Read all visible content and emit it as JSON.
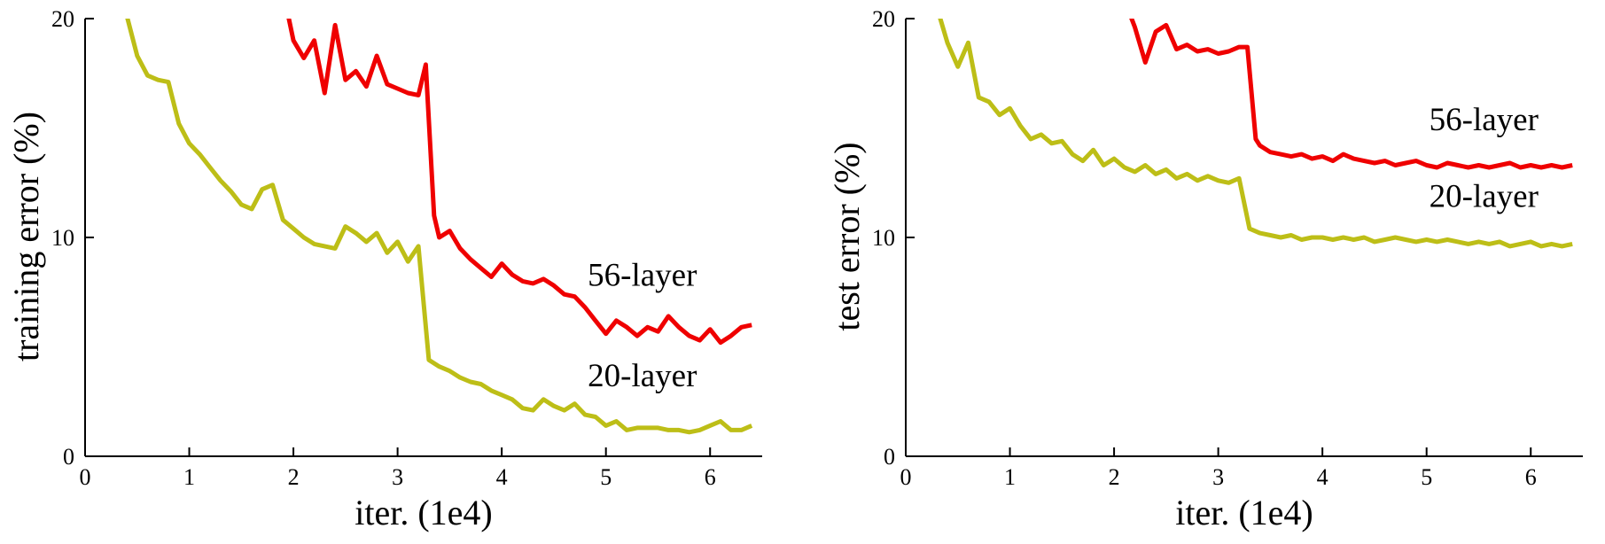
{
  "figure": {
    "background": "#ffffff",
    "axis_color": "#000000"
  },
  "chart_data": [
    {
      "type": "line",
      "title": "",
      "xlabel": "iter. (1e4)",
      "ylabel": "training error (%)",
      "xlim": [
        0,
        6.5
      ],
      "ylim": [
        0,
        20
      ],
      "xticks": [
        0,
        1,
        2,
        3,
        4,
        5,
        6
      ],
      "yticks": [
        0,
        10,
        20
      ],
      "grid": false,
      "legend_position": "inline-annotations",
      "series": [
        {
          "name": "20-layer",
          "color": "#bdbe17",
          "x": [
            0.38,
            0.5,
            0.6,
            0.7,
            0.8,
            0.9,
            1.0,
            1.1,
            1.2,
            1.3,
            1.4,
            1.5,
            1.6,
            1.7,
            1.8,
            1.9,
            2.0,
            2.1,
            2.2,
            2.3,
            2.4,
            2.5,
            2.6,
            2.7,
            2.8,
            2.9,
            3.0,
            3.1,
            3.2,
            3.3,
            3.4,
            3.5,
            3.6,
            3.7,
            3.8,
            3.9,
            4.0,
            4.1,
            4.2,
            4.3,
            4.4,
            4.5,
            4.6,
            4.7,
            4.8,
            4.9,
            5.0,
            5.1,
            5.2,
            5.3,
            5.4,
            5.5,
            5.6,
            5.7,
            5.8,
            5.9,
            6.0,
            6.1,
            6.2,
            6.3,
            6.4
          ],
          "y": [
            20.5,
            18.3,
            17.4,
            17.2,
            17.1,
            15.2,
            14.3,
            13.8,
            13.2,
            12.6,
            12.1,
            11.5,
            11.3,
            12.2,
            12.4,
            10.8,
            10.4,
            10.0,
            9.7,
            9.6,
            9.5,
            10.5,
            10.2,
            9.8,
            10.2,
            9.3,
            9.8,
            8.9,
            9.6,
            4.4,
            4.1,
            3.9,
            3.6,
            3.4,
            3.3,
            3.0,
            2.8,
            2.6,
            2.2,
            2.1,
            2.6,
            2.3,
            2.1,
            2.4,
            1.9,
            1.8,
            1.4,
            1.6,
            1.2,
            1.3,
            1.3,
            1.3,
            1.2,
            1.2,
            1.1,
            1.2,
            1.4,
            1.6,
            1.2,
            1.2,
            1.4
          ],
          "annotation": {
            "text": "20-layer",
            "x": 5.35,
            "y": 3.2
          }
        },
        {
          "name": "56-layer",
          "color": "#ef0000",
          "x": [
            1.93,
            2.0,
            2.1,
            2.2,
            2.3,
            2.4,
            2.5,
            2.6,
            2.7,
            2.8,
            2.9,
            3.0,
            3.1,
            3.2,
            3.27,
            3.35,
            3.4,
            3.5,
            3.6,
            3.7,
            3.8,
            3.9,
            4.0,
            4.1,
            4.2,
            4.3,
            4.4,
            4.5,
            4.6,
            4.7,
            4.8,
            4.9,
            5.0,
            5.1,
            5.2,
            5.3,
            5.4,
            5.5,
            5.6,
            5.7,
            5.8,
            5.9,
            6.0,
            6.1,
            6.2,
            6.3,
            6.4
          ],
          "y": [
            20.6,
            19.0,
            18.2,
            19.0,
            16.6,
            19.7,
            17.2,
            17.6,
            16.9,
            18.3,
            17.0,
            16.8,
            16.6,
            16.5,
            17.9,
            11.0,
            10.0,
            10.3,
            9.5,
            9.0,
            8.6,
            8.2,
            8.8,
            8.3,
            8.0,
            7.9,
            8.1,
            7.8,
            7.4,
            7.3,
            6.8,
            6.2,
            5.6,
            6.2,
            5.9,
            5.5,
            5.9,
            5.7,
            6.4,
            5.9,
            5.5,
            5.3,
            5.8,
            5.2,
            5.5,
            5.9,
            6.0
          ],
          "annotation": {
            "text": "56-layer",
            "x": 5.35,
            "y": 7.8
          }
        }
      ]
    },
    {
      "type": "line",
      "title": "",
      "xlabel": "iter. (1e4)",
      "ylabel": "test error (%)",
      "xlim": [
        0,
        6.5
      ],
      "ylim": [
        0,
        20
      ],
      "xticks": [
        0,
        1,
        2,
        3,
        4,
        5,
        6
      ],
      "yticks": [
        0,
        10,
        20
      ],
      "grid": false,
      "legend_position": "inline-annotations",
      "series": [
        {
          "name": "20-layer",
          "color": "#bdbe17",
          "x": [
            0.3,
            0.4,
            0.5,
            0.6,
            0.7,
            0.8,
            0.9,
            1.0,
            1.1,
            1.2,
            1.3,
            1.4,
            1.5,
            1.6,
            1.7,
            1.8,
            1.9,
            2.0,
            2.1,
            2.2,
            2.3,
            2.4,
            2.5,
            2.6,
            2.7,
            2.8,
            2.9,
            3.0,
            3.1,
            3.2,
            3.3,
            3.4,
            3.5,
            3.6,
            3.7,
            3.8,
            3.9,
            4.0,
            4.1,
            4.2,
            4.3,
            4.4,
            4.5,
            4.6,
            4.7,
            4.8,
            4.9,
            5.0,
            5.1,
            5.2,
            5.3,
            5.4,
            5.5,
            5.6,
            5.7,
            5.8,
            5.9,
            6.0,
            6.1,
            6.2,
            6.3,
            6.4
          ],
          "y": [
            20.5,
            18.9,
            17.8,
            18.9,
            16.4,
            16.2,
            15.6,
            15.9,
            15.1,
            14.5,
            14.7,
            14.3,
            14.4,
            13.8,
            13.5,
            14.0,
            13.3,
            13.6,
            13.2,
            13.0,
            13.3,
            12.9,
            13.1,
            12.7,
            12.9,
            12.6,
            12.8,
            12.6,
            12.5,
            12.7,
            10.4,
            10.2,
            10.1,
            10.0,
            10.1,
            9.9,
            10.0,
            10.0,
            9.9,
            10.0,
            9.9,
            10.0,
            9.8,
            9.9,
            10.0,
            9.9,
            9.8,
            9.9,
            9.8,
            9.9,
            9.8,
            9.7,
            9.8,
            9.7,
            9.8,
            9.6,
            9.7,
            9.8,
            9.6,
            9.7,
            9.6,
            9.7
          ],
          "annotation": {
            "text": "20-layer",
            "x": 5.55,
            "y": 11.4
          }
        },
        {
          "name": "56-layer",
          "color": "#ef0000",
          "x": [
            2.12,
            2.2,
            2.3,
            2.4,
            2.5,
            2.6,
            2.7,
            2.8,
            2.9,
            3.0,
            3.1,
            3.2,
            3.28,
            3.36,
            3.4,
            3.5,
            3.6,
            3.7,
            3.8,
            3.9,
            4.0,
            4.1,
            4.2,
            4.3,
            4.4,
            4.5,
            4.6,
            4.7,
            4.8,
            4.9,
            5.0,
            5.1,
            5.2,
            5.3,
            5.4,
            5.5,
            5.6,
            5.7,
            5.8,
            5.9,
            6.0,
            6.1,
            6.2,
            6.3,
            6.4
          ],
          "y": [
            20.6,
            19.6,
            18.0,
            19.4,
            19.7,
            18.6,
            18.8,
            18.5,
            18.6,
            18.4,
            18.5,
            18.7,
            18.7,
            14.5,
            14.2,
            13.9,
            13.8,
            13.7,
            13.8,
            13.6,
            13.7,
            13.5,
            13.8,
            13.6,
            13.5,
            13.4,
            13.5,
            13.3,
            13.4,
            13.5,
            13.3,
            13.2,
            13.4,
            13.3,
            13.2,
            13.3,
            13.2,
            13.3,
            13.4,
            13.2,
            13.3,
            13.2,
            13.3,
            13.2,
            13.3
          ],
          "annotation": {
            "text": "56-layer",
            "x": 5.55,
            "y": 14.9
          }
        }
      ]
    }
  ]
}
